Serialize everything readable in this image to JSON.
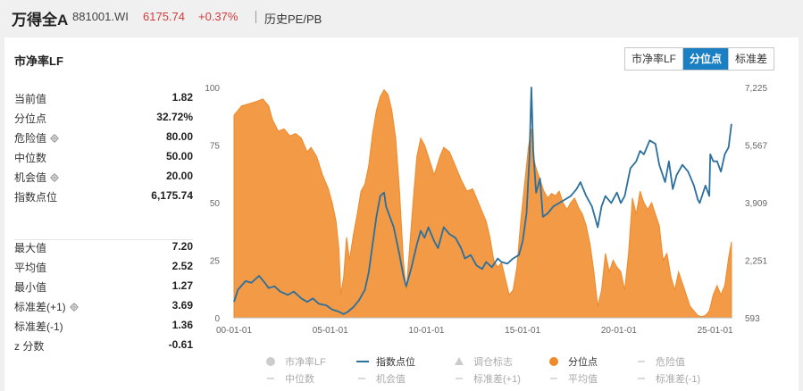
{
  "header": {
    "name": "万得全A",
    "code": "881001.WI",
    "price": "6175.74",
    "change": "+0.37%",
    "link": "历史PE/PB"
  },
  "panel": {
    "title": "市净率LF",
    "tabs": [
      "市净率LF",
      "分位点",
      "标准差"
    ],
    "active_tab": 1
  },
  "stats_top": [
    {
      "label": "当前值",
      "value": "1.82",
      "gear": false
    },
    {
      "label": "分位点",
      "value": "32.72%",
      "gear": false
    },
    {
      "label": "危险值",
      "value": "80.00",
      "gear": true
    },
    {
      "label": "中位数",
      "value": "50.00",
      "gear": false
    },
    {
      "label": "机会值",
      "value": "20.00",
      "gear": true
    },
    {
      "label": "指数点位",
      "value": "6,175.74",
      "gear": false
    }
  ],
  "stats_bottom": [
    {
      "label": "最大值",
      "value": "7.20",
      "gear": false
    },
    {
      "label": "平均值",
      "value": "2.52",
      "gear": false
    },
    {
      "label": "最小值",
      "value": "1.27",
      "gear": false
    },
    {
      "label": "标准差(+1)",
      "value": "3.69",
      "gear": true
    },
    {
      "label": "标准差(-1)",
      "value": "1.36",
      "gear": false
    },
    {
      "label": "z 分数",
      "value": "-0.61",
      "gear": false
    }
  ],
  "colors": {
    "percentile_fill": "#f29a45",
    "percentile_line": "#ee8a2a",
    "index_line": "#2a6f9e",
    "accent_tab": "#1b7fc4",
    "price_red": "#d23b3b"
  },
  "chart_data": {
    "type": "area",
    "x_ticks": [
      "00-01-01",
      "05-01-01",
      "10-01-01",
      "15-01-01",
      "20-01-01",
      "25-01-01"
    ],
    "x_range": [
      2000.0,
      2025.9
    ],
    "y_left_ticks": [
      0,
      25,
      50,
      75,
      100
    ],
    "y_left_range": [
      0,
      100
    ],
    "y_right_ticks": [
      "593",
      "2,251",
      "3,909",
      "5,567",
      "7,225"
    ],
    "y_right_range": [
      593,
      7225
    ],
    "series": [
      {
        "name": "分位点",
        "axis": "left",
        "points": [
          [
            2000.0,
            88
          ],
          [
            2000.4,
            92
          ],
          [
            2000.8,
            93
          ],
          [
            2001.2,
            94
          ],
          [
            2001.5,
            95
          ],
          [
            2001.8,
            92
          ],
          [
            2002.0,
            86
          ],
          [
            2002.3,
            81
          ],
          [
            2002.6,
            82
          ],
          [
            2002.9,
            79
          ],
          [
            2003.2,
            80
          ],
          [
            2003.5,
            78
          ],
          [
            2003.8,
            72
          ],
          [
            2004.0,
            74
          ],
          [
            2004.3,
            70
          ],
          [
            2004.6,
            62
          ],
          [
            2004.9,
            56
          ],
          [
            2005.1,
            50
          ],
          [
            2005.3,
            42
          ],
          [
            2005.45,
            30
          ],
          [
            2005.55,
            10
          ],
          [
            2005.7,
            18
          ],
          [
            2005.85,
            35
          ],
          [
            2006.0,
            25
          ],
          [
            2006.2,
            36
          ],
          [
            2006.4,
            45
          ],
          [
            2006.6,
            55
          ],
          [
            2006.8,
            58
          ],
          [
            2007.0,
            66
          ],
          [
            2007.2,
            80
          ],
          [
            2007.4,
            90
          ],
          [
            2007.6,
            96
          ],
          [
            2007.8,
            99
          ],
          [
            2008.0,
            97
          ],
          [
            2008.2,
            90
          ],
          [
            2008.4,
            78
          ],
          [
            2008.6,
            55
          ],
          [
            2008.8,
            25
          ],
          [
            2008.95,
            12
          ],
          [
            2009.1,
            28
          ],
          [
            2009.3,
            50
          ],
          [
            2009.5,
            70
          ],
          [
            2009.7,
            78
          ],
          [
            2009.9,
            75
          ],
          [
            2010.1,
            70
          ],
          [
            2010.4,
            62
          ],
          [
            2010.7,
            70
          ],
          [
            2010.9,
            74
          ],
          [
            2011.2,
            72
          ],
          [
            2011.5,
            66
          ],
          [
            2011.8,
            60
          ],
          [
            2012.1,
            55
          ],
          [
            2012.4,
            56
          ],
          [
            2012.7,
            50
          ],
          [
            2012.9,
            46
          ],
          [
            2013.1,
            42
          ],
          [
            2013.3,
            35
          ],
          [
            2013.5,
            25
          ],
          [
            2013.7,
            22
          ],
          [
            2013.9,
            24
          ],
          [
            2014.1,
            17
          ],
          [
            2014.3,
            10
          ],
          [
            2014.5,
            12
          ],
          [
            2014.7,
            22
          ],
          [
            2014.9,
            42
          ],
          [
            2015.1,
            58
          ],
          [
            2015.3,
            74
          ],
          [
            2015.45,
            82
          ],
          [
            2015.55,
            70
          ],
          [
            2015.7,
            65
          ],
          [
            2015.9,
            60
          ],
          [
            2016.1,
            55
          ],
          [
            2016.3,
            52
          ],
          [
            2016.5,
            54
          ],
          [
            2016.7,
            53
          ],
          [
            2016.9,
            55
          ],
          [
            2017.1,
            50
          ],
          [
            2017.3,
            47
          ],
          [
            2017.5,
            50
          ],
          [
            2017.7,
            52
          ],
          [
            2017.9,
            48
          ],
          [
            2018.1,
            45
          ],
          [
            2018.3,
            40
          ],
          [
            2018.5,
            32
          ],
          [
            2018.7,
            20
          ],
          [
            2018.9,
            5
          ],
          [
            2019.1,
            12
          ],
          [
            2019.3,
            28
          ],
          [
            2019.5,
            20
          ],
          [
            2019.7,
            25
          ],
          [
            2019.9,
            22
          ],
          [
            2020.1,
            20
          ],
          [
            2020.3,
            12
          ],
          [
            2020.5,
            28
          ],
          [
            2020.7,
            52
          ],
          [
            2020.9,
            45
          ],
          [
            2021.1,
            55
          ],
          [
            2021.3,
            50
          ],
          [
            2021.5,
            47
          ],
          [
            2021.7,
            50
          ],
          [
            2021.9,
            45
          ],
          [
            2022.1,
            40
          ],
          [
            2022.3,
            25
          ],
          [
            2022.5,
            28
          ],
          [
            2022.7,
            18
          ],
          [
            2022.9,
            12
          ],
          [
            2023.1,
            20
          ],
          [
            2023.3,
            15
          ],
          [
            2023.5,
            10
          ],
          [
            2023.7,
            5
          ],
          [
            2023.9,
            3
          ],
          [
            2024.1,
            1
          ],
          [
            2024.3,
            0.5
          ],
          [
            2024.5,
            1
          ],
          [
            2024.7,
            3
          ],
          [
            2024.9,
            10
          ],
          [
            2025.1,
            14
          ],
          [
            2025.3,
            10
          ],
          [
            2025.5,
            14
          ],
          [
            2025.7,
            26
          ],
          [
            2025.85,
            33
          ]
        ]
      },
      {
        "name": "指数点位",
        "axis": "right",
        "points": [
          [
            2000.0,
            1050
          ],
          [
            2000.2,
            1400
          ],
          [
            2000.6,
            1650
          ],
          [
            2000.9,
            1600
          ],
          [
            2001.3,
            1800
          ],
          [
            2001.6,
            1600
          ],
          [
            2001.8,
            1450
          ],
          [
            2002.1,
            1500
          ],
          [
            2002.4,
            1350
          ],
          [
            2002.8,
            1250
          ],
          [
            2003.1,
            1350
          ],
          [
            2003.5,
            1150
          ],
          [
            2003.8,
            1050
          ],
          [
            2004.1,
            1150
          ],
          [
            2004.4,
            1000
          ],
          [
            2004.8,
            950
          ],
          [
            2005.1,
            830
          ],
          [
            2005.4,
            780
          ],
          [
            2005.7,
            700
          ],
          [
            2005.9,
            760
          ],
          [
            2006.2,
            900
          ],
          [
            2006.5,
            1100
          ],
          [
            2006.8,
            1400
          ],
          [
            2007.0,
            1900
          ],
          [
            2007.2,
            2700
          ],
          [
            2007.4,
            3500
          ],
          [
            2007.6,
            4100
          ],
          [
            2007.8,
            4200
          ],
          [
            2007.9,
            3800
          ],
          [
            2008.1,
            3500
          ],
          [
            2008.3,
            3200
          ],
          [
            2008.6,
            2400
          ],
          [
            2008.8,
            1800
          ],
          [
            2008.95,
            1500
          ],
          [
            2009.2,
            2000
          ],
          [
            2009.5,
            2700
          ],
          [
            2009.7,
            3100
          ],
          [
            2009.9,
            2900
          ],
          [
            2010.1,
            3200
          ],
          [
            2010.4,
            2800
          ],
          [
            2010.6,
            2600
          ],
          [
            2010.9,
            3200
          ],
          [
            2011.2,
            3000
          ],
          [
            2011.5,
            2900
          ],
          [
            2011.8,
            2600
          ],
          [
            2012.0,
            2300
          ],
          [
            2012.3,
            2400
          ],
          [
            2012.6,
            2100
          ],
          [
            2012.9,
            2000
          ],
          [
            2013.1,
            2200
          ],
          [
            2013.4,
            2050
          ],
          [
            2013.7,
            2300
          ],
          [
            2013.9,
            2200
          ],
          [
            2014.2,
            2150
          ],
          [
            2014.5,
            2300
          ],
          [
            2014.8,
            2400
          ],
          [
            2015.0,
            2800
          ],
          [
            2015.2,
            3600
          ],
          [
            2015.35,
            5200
          ],
          [
            2015.45,
            7225
          ],
          [
            2015.55,
            5400
          ],
          [
            2015.7,
            4200
          ],
          [
            2015.9,
            4600
          ],
          [
            2016.05,
            3500
          ],
          [
            2016.3,
            3600
          ],
          [
            2016.6,
            3800
          ],
          [
            2016.9,
            3900
          ],
          [
            2017.2,
            4000
          ],
          [
            2017.5,
            4100
          ],
          [
            2017.8,
            4300
          ],
          [
            2018.0,
            4500
          ],
          [
            2018.3,
            4100
          ],
          [
            2018.6,
            3800
          ],
          [
            2018.9,
            3200
          ],
          [
            2019.1,
            3800
          ],
          [
            2019.3,
            4100
          ],
          [
            2019.6,
            3900
          ],
          [
            2019.9,
            4200
          ],
          [
            2020.1,
            3900
          ],
          [
            2020.3,
            4100
          ],
          [
            2020.6,
            4900
          ],
          [
            2020.9,
            5100
          ],
          [
            2021.1,
            5400
          ],
          [
            2021.3,
            5300
          ],
          [
            2021.6,
            5700
          ],
          [
            2021.9,
            5600
          ],
          [
            2022.1,
            5000
          ],
          [
            2022.4,
            4500
          ],
          [
            2022.6,
            5100
          ],
          [
            2022.8,
            4300
          ],
          [
            2023.0,
            4700
          ],
          [
            2023.3,
            5000
          ],
          [
            2023.6,
            4800
          ],
          [
            2023.9,
            4400
          ],
          [
            2024.1,
            4000
          ],
          [
            2024.2,
            3900
          ],
          [
            2024.5,
            4400
          ],
          [
            2024.7,
            4100
          ],
          [
            2024.75,
            5300
          ],
          [
            2024.9,
            5100
          ],
          [
            2025.1,
            5100
          ],
          [
            2025.3,
            4800
          ],
          [
            2025.5,
            5300
          ],
          [
            2025.7,
            5500
          ],
          [
            2025.85,
            6176
          ]
        ]
      }
    ],
    "legend": [
      "市净率LF",
      "指数点位",
      "调仓标志",
      "分位点",
      "危险值",
      "中位数",
      "机会值",
      "标准差(+1)",
      "平均值",
      "标准差(-1)"
    ],
    "legend_active": [
      "指数点位",
      "分位点"
    ],
    "legend_position": "bottom"
  }
}
